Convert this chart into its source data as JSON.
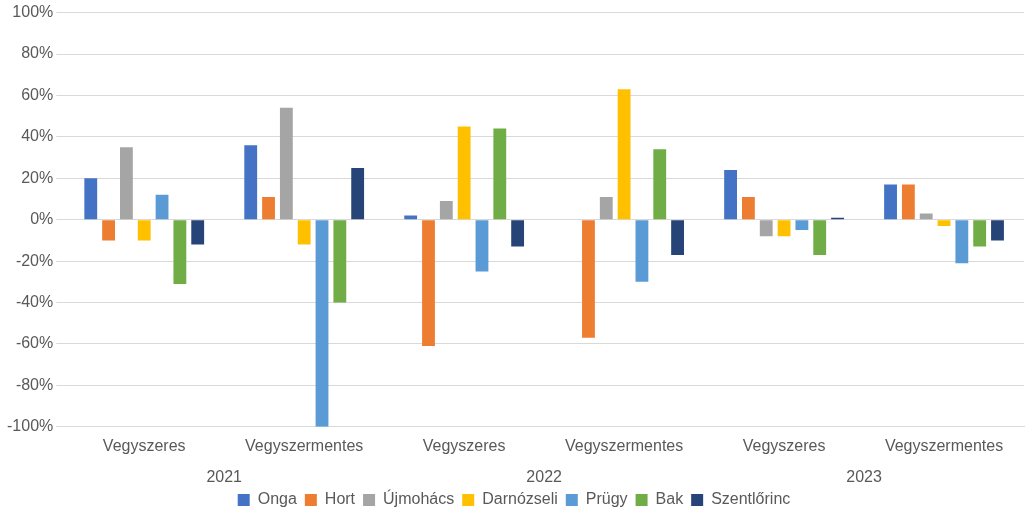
{
  "chart_data": {
    "type": "bar",
    "categories": [
      "Vegyszeres",
      "Vegyszermentes",
      "Vegyszeres",
      "Vegyszermentes",
      "Vegyszeres",
      "Vegyszermentes"
    ],
    "series": [
      {
        "name": "Onga",
        "color": "#4472c4",
        "values": [
          20,
          36,
          2,
          0,
          24,
          17
        ]
      },
      {
        "name": "Hort",
        "color": "#ed7d31",
        "values": [
          -10,
          11,
          -61,
          -57,
          11,
          17
        ]
      },
      {
        "name": "Újmohács",
        "color": "#a5a5a5",
        "values": [
          35,
          54,
          9,
          11,
          -8,
          3
        ]
      },
      {
        "name": "Darnózseli",
        "color": "#ffc000",
        "values": [
          -10,
          -12,
          45,
          63,
          -8,
          -3
        ]
      },
      {
        "name": "Prügy",
        "color": "#5b9bd5",
        "values": [
          12,
          -100,
          -25,
          -30,
          -5,
          -21
        ]
      },
      {
        "name": "Bak",
        "color": "#70ad47",
        "values": [
          -31,
          -40,
          44,
          34,
          -17,
          -13
        ]
      },
      {
        "name": "Szentlőrinc",
        "color": "#264478",
        "values": [
          -12,
          25,
          -13,
          -17,
          1,
          -10
        ]
      }
    ],
    "annotations": [
      "2021",
      "2022",
      "2023"
    ],
    "ylim": [
      -100,
      100
    ],
    "yticks": [
      {
        "value": -100,
        "label": "-100%"
      },
      {
        "value": -80,
        "label": "-80%"
      },
      {
        "value": -60,
        "label": "-60%"
      },
      {
        "value": -40,
        "label": "-40%"
      },
      {
        "value": -20,
        "label": "-20%"
      },
      {
        "value": 0,
        "label": "0%"
      },
      {
        "value": 20,
        "label": "20%"
      },
      {
        "value": 40,
        "label": "40%"
      },
      {
        "value": 60,
        "label": "60%"
      },
      {
        "value": 80,
        "label": "80%"
      },
      {
        "value": 100,
        "label": "100%"
      }
    ],
    "grid": "y",
    "legend": "bottom"
  }
}
